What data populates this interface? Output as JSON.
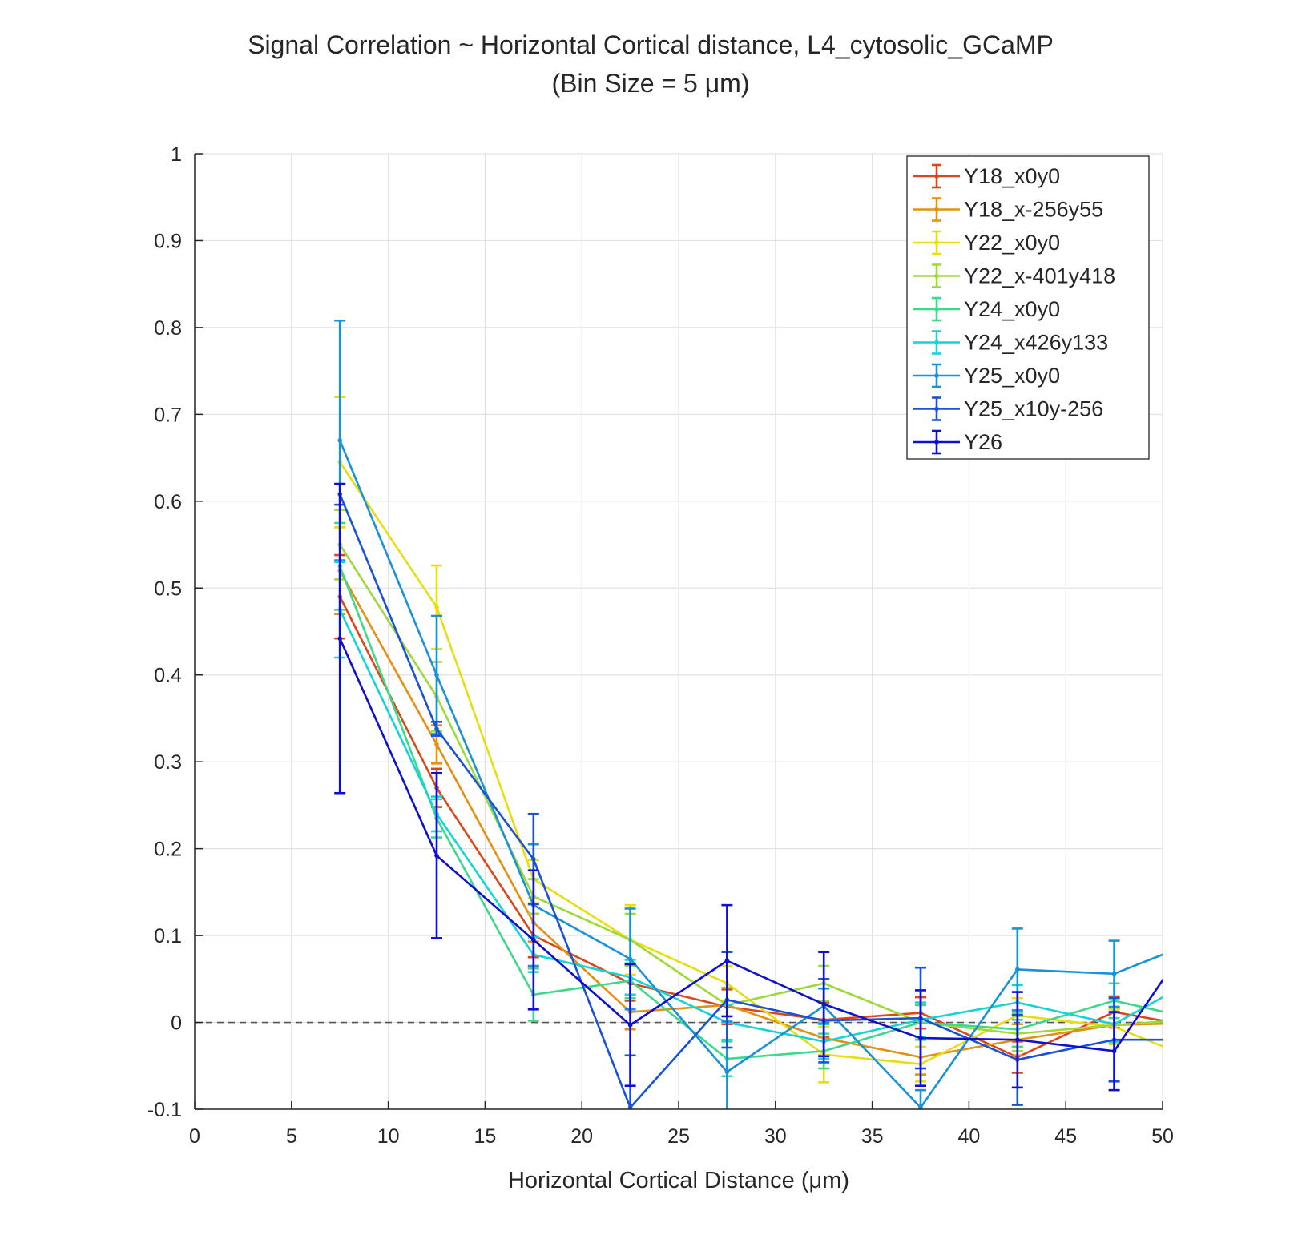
{
  "chart_data": {
    "type": "line",
    "title": "Signal Correlation ~ Horizontal Cortical distance, L4_cytosolic_GCaMP",
    "subtitle": "(Bin Size = 5 μm)",
    "xlabel": "Horizontal Cortical Distance (μm)",
    "ylabel": "",
    "xlim": [
      0,
      50
    ],
    "ylim": [
      -0.1,
      1
    ],
    "xticks": [
      0,
      5,
      10,
      15,
      20,
      25,
      30,
      35,
      40,
      45,
      50
    ],
    "yticks": [
      -0.1,
      0,
      0.1,
      0.2,
      0.3,
      0.4,
      0.5,
      0.6,
      0.7,
      0.8,
      0.9,
      1
    ],
    "ytick_labels": [
      "-0.1",
      "0",
      "0.1",
      "0.2",
      "0.3",
      "0.4",
      "0.5",
      "0.6",
      "0.7",
      "0.8",
      "0.9",
      "1"
    ],
    "grid": true,
    "zero_line": "dashed",
    "legend_position": "top-right",
    "x": [
      7.5,
      12.5,
      17.5,
      22.5,
      27.5,
      32.5,
      37.5,
      42.5,
      47.5,
      52.5
    ],
    "series": [
      {
        "name": "Y18_x0y0",
        "color": "#d9481a",
        "values": [
          0.49,
          0.27,
          0.1,
          0.045,
          0.018,
          0.003,
          0.011,
          -0.04,
          0.012,
          -0.008
        ],
        "errors": [
          0.048,
          0.022,
          0.025,
          0.02,
          0.02,
          0.02,
          0.018,
          0.018,
          0.018,
          0.018
        ]
      },
      {
        "name": "Y18_x-256y55",
        "color": "#e49012",
        "values": [
          0.52,
          0.32,
          0.115,
          0.012,
          0.02,
          -0.018,
          -0.04,
          -0.02,
          -0.003,
          0.0
        ],
        "errors": [
          0.05,
          0.022,
          0.022,
          0.02,
          0.02,
          0.02,
          0.02,
          0.018,
          0.018,
          0.018
        ]
      },
      {
        "name": "Y22_x0y0",
        "color": "#e8dd10",
        "values": [
          0.645,
          0.478,
          0.165,
          0.095,
          0.045,
          -0.037,
          -0.048,
          0.008,
          -0.005,
          -0.05
        ],
        "errors": [
          0.075,
          0.048,
          0.022,
          0.04,
          0.02,
          0.032,
          0.02,
          0.02,
          0.02,
          0.02
        ]
      },
      {
        "name": "Y22_x-401y418",
        "color": "#9ed93a",
        "values": [
          0.55,
          0.375,
          0.145,
          0.095,
          0.02,
          0.045,
          0.0,
          -0.013,
          -0.003,
          0.005
        ],
        "errors": [
          0.04,
          0.04,
          0.02,
          0.03,
          0.02,
          0.02,
          0.02,
          0.02,
          0.02,
          0.02
        ]
      },
      {
        "name": "Y24_x0y0",
        "color": "#3ed88c",
        "values": [
          0.525,
          0.235,
          0.032,
          0.048,
          -0.042,
          -0.033,
          0.0,
          -0.008,
          0.025,
          0.0
        ],
        "errors": [
          0.05,
          0.022,
          0.03,
          0.02,
          0.02,
          0.02,
          0.02,
          0.02,
          0.02,
          0.02
        ]
      },
      {
        "name": "Y24_x426y133",
        "color": "#16d3d6",
        "values": [
          0.475,
          0.24,
          0.078,
          0.052,
          0.0,
          -0.022,
          0.003,
          0.023,
          -0.002,
          0.06
        ],
        "errors": [
          0.055,
          0.02,
          0.02,
          0.02,
          0.02,
          0.02,
          0.02,
          0.02,
          0.02,
          0.02
        ]
      },
      {
        "name": "Y25_x0y0",
        "color": "#1a92d8",
        "values": [
          0.67,
          0.4,
          0.135,
          0.073,
          -0.057,
          0.019,
          -0.098,
          0.061,
          0.056,
          0.1
        ],
        "errors": [
          0.138,
          0.068,
          0.07,
          0.058,
          0.058,
          0.02,
          0.02,
          0.047,
          0.038,
          0.03
        ]
      },
      {
        "name": "Y25_x10y-256",
        "color": "#1a52d6",
        "values": [
          0.608,
          0.338,
          0.188,
          -0.098,
          0.026,
          0.002,
          0.005,
          -0.043,
          -0.02,
          -0.02
        ],
        "errors": [
          0.012,
          0.008,
          0.052,
          0.06,
          0.055,
          0.048,
          0.058,
          0.052,
          0.048,
          0.02
        ]
      },
      {
        "name": "Y26",
        "color": "#0f0fcf",
        "values": [
          0.442,
          0.192,
          0.095,
          -0.003,
          0.071,
          0.021,
          -0.018,
          -0.02,
          -0.033,
          0.13
        ],
        "errors": [
          0.178,
          0.095,
          0.08,
          0.07,
          0.064,
          0.06,
          0.055,
          0.055,
          0.045,
          0.02
        ]
      }
    ]
  }
}
